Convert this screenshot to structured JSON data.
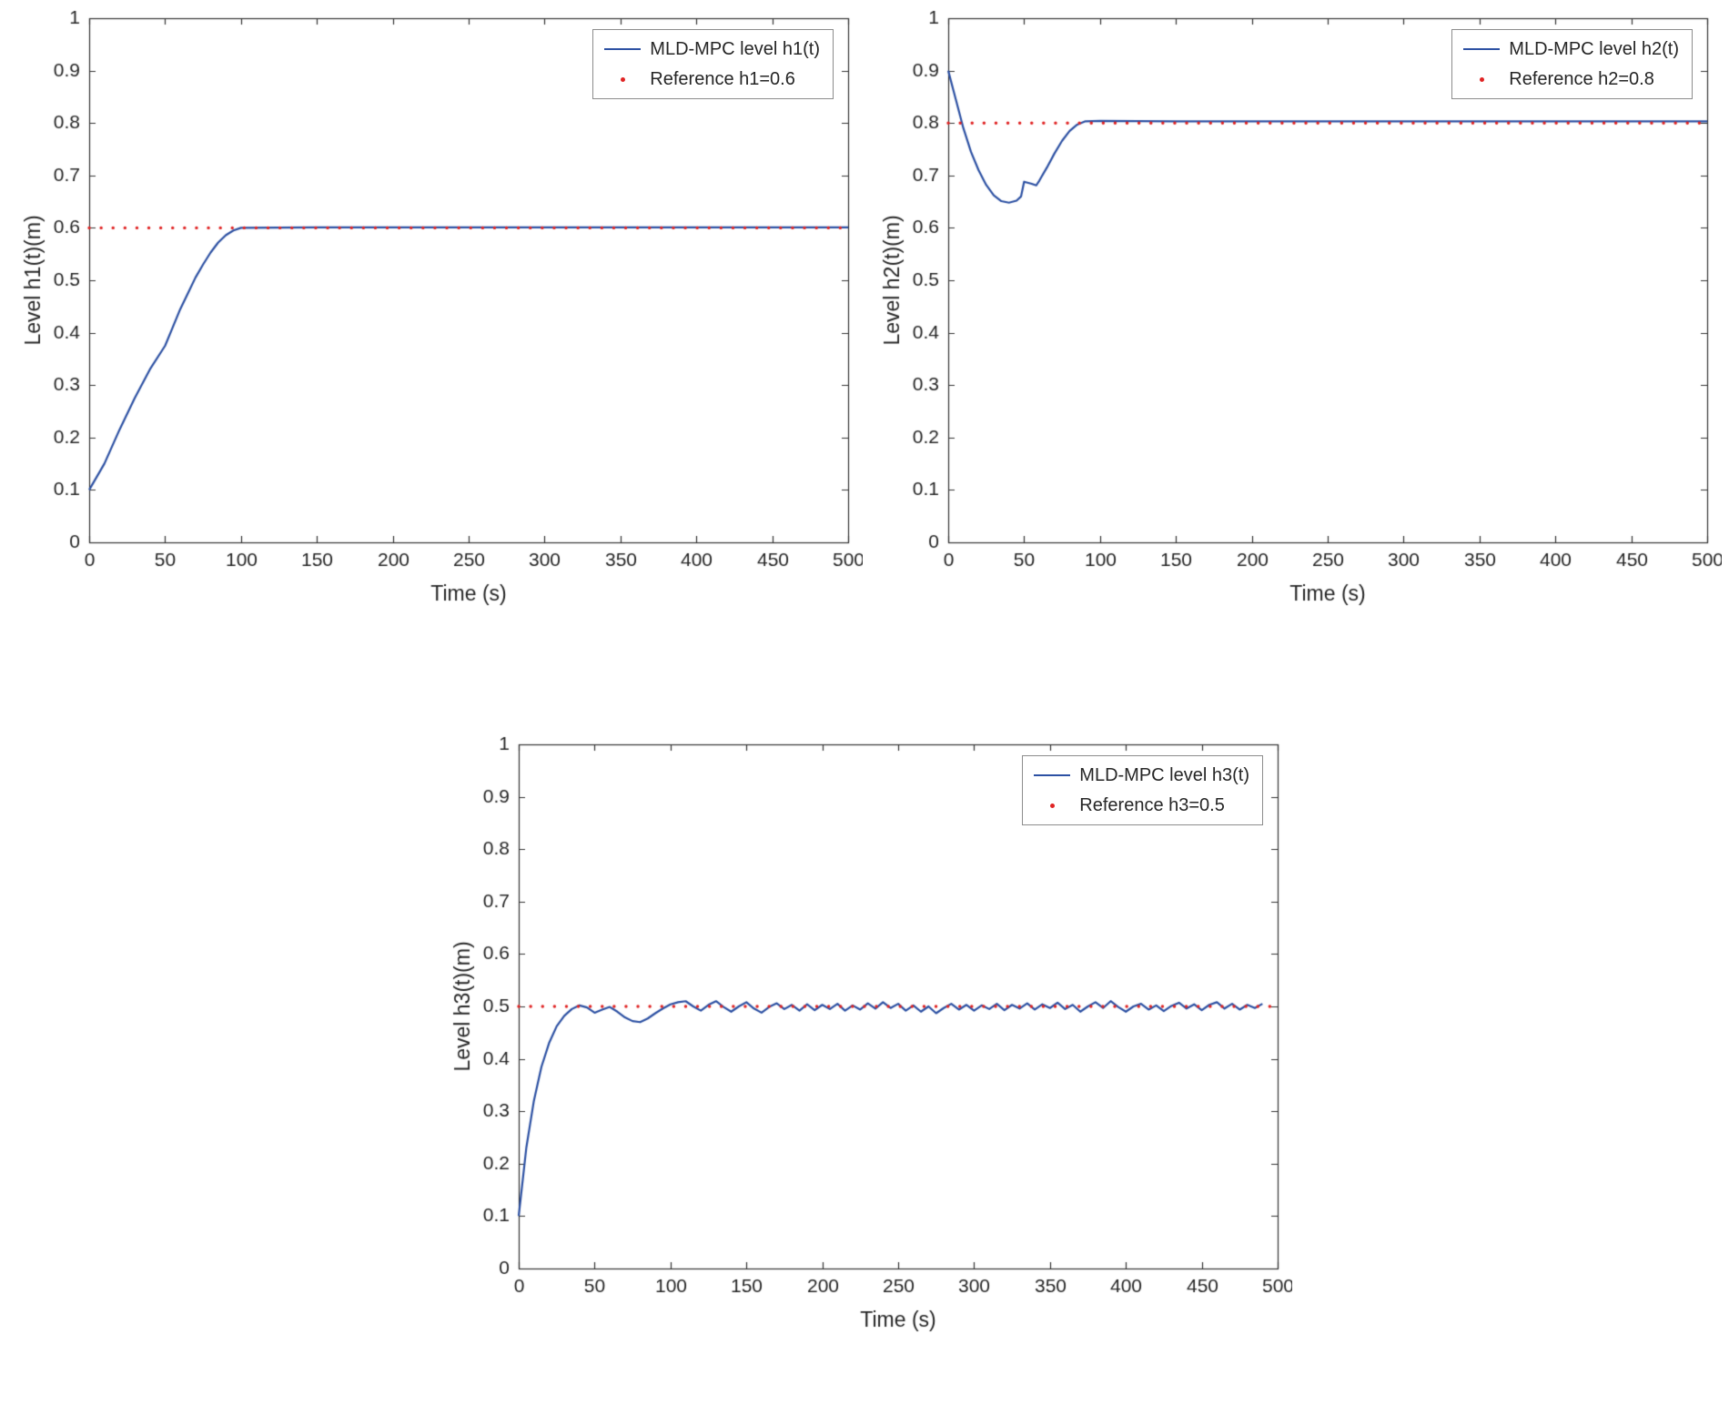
{
  "figure": {
    "background": "#ffffff",
    "axis_color": "#262626",
    "box_color": "#333333"
  },
  "chart_data": [
    {
      "type": "line",
      "title": "",
      "xlabel": "Time (s)",
      "ylabel": "Level h1(t)(m)",
      "xlim": [
        0,
        500
      ],
      "ylim": [
        0,
        1
      ],
      "xticks": [
        0,
        50,
        100,
        150,
        200,
        250,
        300,
        350,
        400,
        450,
        500
      ],
      "xtick_labels": [
        "0",
        "50",
        "100",
        "150",
        "200",
        "250",
        "300",
        "350",
        "400",
        "450",
        "500"
      ],
      "yticks": [
        0,
        0.1,
        0.2,
        0.3,
        0.4,
        0.5,
        0.6,
        0.7,
        0.8,
        0.9,
        1
      ],
      "ytick_labels": [
        "0",
        "0.1",
        "0.2",
        "0.3",
        "0.4",
        "0.5",
        "0.6",
        "0.7",
        "0.8",
        "0.9",
        "1"
      ],
      "grid": false,
      "legend_position": "top-right",
      "series": [
        {
          "name": "MLD-MPC level h1(t)",
          "color": "#2d51a3",
          "style": "solid",
          "points": [
            [
              0,
              0.1
            ],
            [
              10,
              0.15
            ],
            [
              20,
              0.215
            ],
            [
              30,
              0.275
            ],
            [
              40,
              0.33
            ],
            [
              50,
              0.375
            ],
            [
              55,
              0.41
            ],
            [
              60,
              0.445
            ],
            [
              65,
              0.475
            ],
            [
              70,
              0.505
            ],
            [
              75,
              0.53
            ],
            [
              80,
              0.553
            ],
            [
              85,
              0.572
            ],
            [
              90,
              0.586
            ],
            [
              95,
              0.595
            ],
            [
              100,
              0.6
            ],
            [
              150,
              0.601
            ],
            [
              200,
              0.601
            ],
            [
              250,
              0.601
            ],
            [
              300,
              0.601
            ],
            [
              350,
              0.601
            ],
            [
              400,
              0.601
            ],
            [
              450,
              0.601
            ],
            [
              500,
              0.601
            ]
          ]
        },
        {
          "name": "Reference h1=0.6",
          "color": "#e02424",
          "style": "dotted",
          "ref_value": 0.6,
          "x_start": 0,
          "x_end": 500
        }
      ]
    },
    {
      "type": "line",
      "title": "",
      "xlabel": "Time (s)",
      "ylabel": "Level h2(t)(m)",
      "xlim": [
        0,
        500
      ],
      "ylim": [
        0,
        1
      ],
      "xticks": [
        0,
        50,
        100,
        150,
        200,
        250,
        300,
        350,
        400,
        450,
        500
      ],
      "xtick_labels": [
        "0",
        "50",
        "100",
        "150",
        "200",
        "250",
        "300",
        "350",
        "400",
        "450",
        "500"
      ],
      "yticks": [
        0,
        0.1,
        0.2,
        0.3,
        0.4,
        0.5,
        0.6,
        0.7,
        0.8,
        0.9,
        1
      ],
      "ytick_labels": [
        "0",
        "0.1",
        "0.2",
        "0.3",
        "0.4",
        "0.5",
        "0.6",
        "0.7",
        "0.8",
        "0.9",
        "1"
      ],
      "grid": false,
      "legend_position": "top-right",
      "series": [
        {
          "name": "MLD-MPC level h2(t)",
          "color": "#2d51a3",
          "style": "solid",
          "points": [
            [
              0,
              0.9
            ],
            [
              5,
              0.845
            ],
            [
              10,
              0.79
            ],
            [
              15,
              0.745
            ],
            [
              20,
              0.71
            ],
            [
              25,
              0.682
            ],
            [
              30,
              0.662
            ],
            [
              35,
              0.651
            ],
            [
              40,
              0.648
            ],
            [
              45,
              0.652
            ],
            [
              48,
              0.66
            ],
            [
              50,
              0.688
            ],
            [
              55,
              0.684
            ],
            [
              58,
              0.681
            ],
            [
              60,
              0.69
            ],
            [
              65,
              0.715
            ],
            [
              70,
              0.742
            ],
            [
              75,
              0.766
            ],
            [
              80,
              0.785
            ],
            [
              85,
              0.797
            ],
            [
              90,
              0.803
            ],
            [
              100,
              0.804
            ],
            [
              150,
              0.803
            ],
            [
              200,
              0.803
            ],
            [
              250,
              0.803
            ],
            [
              300,
              0.803
            ],
            [
              350,
              0.803
            ],
            [
              400,
              0.803
            ],
            [
              450,
              0.803
            ],
            [
              500,
              0.803
            ]
          ]
        },
        {
          "name": "Reference h2=0.8",
          "color": "#e02424",
          "style": "dotted",
          "ref_value": 0.8,
          "x_start": 0,
          "x_end": 500
        }
      ]
    },
    {
      "type": "line",
      "title": "",
      "xlabel": "Time (s)",
      "ylabel": "Level h3(t)(m)",
      "xlim": [
        0,
        500
      ],
      "ylim": [
        0,
        1
      ],
      "xticks": [
        0,
        50,
        100,
        150,
        200,
        250,
        300,
        350,
        400,
        450,
        500
      ],
      "xtick_labels": [
        "0",
        "50",
        "100",
        "150",
        "200",
        "250",
        "300",
        "350",
        "400",
        "450",
        "500"
      ],
      "yticks": [
        0,
        0.1,
        0.2,
        0.3,
        0.4,
        0.5,
        0.6,
        0.7,
        0.8,
        0.9,
        1
      ],
      "ytick_labels": [
        "0",
        "0.1",
        "0.2",
        "0.3",
        "0.4",
        "0.5",
        "0.6",
        "0.7",
        "0.8",
        "0.9",
        "1"
      ],
      "grid": false,
      "legend_position": "top-right",
      "series": [
        {
          "name": "MLD-MPC level h3(t)",
          "color": "#2d51a3",
          "style": "solid",
          "points": [
            [
              0,
              0.1
            ],
            [
              5,
              0.23
            ],
            [
              10,
              0.32
            ],
            [
              15,
              0.385
            ],
            [
              20,
              0.43
            ],
            [
              25,
              0.462
            ],
            [
              30,
              0.482
            ],
            [
              35,
              0.495
            ],
            [
              40,
              0.502
            ],
            [
              45,
              0.498
            ],
            [
              50,
              0.488
            ],
            [
              55,
              0.494
            ],
            [
              60,
              0.499
            ],
            [
              65,
              0.49
            ],
            [
              70,
              0.479
            ],
            [
              75,
              0.472
            ],
            [
              80,
              0.47
            ],
            [
              85,
              0.477
            ],
            [
              90,
              0.487
            ],
            [
              95,
              0.496
            ],
            [
              100,
              0.504
            ],
            [
              105,
              0.508
            ],
            [
              110,
              0.51
            ],
            [
              115,
              0.5
            ],
            [
              120,
              0.492
            ],
            [
              125,
              0.503
            ],
            [
              130,
              0.51
            ],
            [
              135,
              0.499
            ],
            [
              140,
              0.49
            ],
            [
              145,
              0.5
            ],
            [
              150,
              0.508
            ],
            [
              155,
              0.496
            ],
            [
              160,
              0.488
            ],
            [
              165,
              0.499
            ],
            [
              170,
              0.506
            ],
            [
              175,
              0.495
            ],
            [
              180,
              0.503
            ],
            [
              185,
              0.492
            ],
            [
              190,
              0.504
            ],
            [
              195,
              0.493
            ],
            [
              200,
              0.503
            ],
            [
              205,
              0.495
            ],
            [
              210,
              0.505
            ],
            [
              215,
              0.492
            ],
            [
              220,
              0.502
            ],
            [
              225,
              0.494
            ],
            [
              230,
              0.506
            ],
            [
              235,
              0.496
            ],
            [
              240,
              0.508
            ],
            [
              245,
              0.497
            ],
            [
              250,
              0.505
            ],
            [
              255,
              0.492
            ],
            [
              260,
              0.502
            ],
            [
              265,
              0.49
            ],
            [
              270,
              0.5
            ],
            [
              275,
              0.487
            ],
            [
              280,
              0.497
            ],
            [
              285,
              0.505
            ],
            [
              290,
              0.494
            ],
            [
              295,
              0.503
            ],
            [
              300,
              0.492
            ],
            [
              305,
              0.502
            ],
            [
              310,
              0.495
            ],
            [
              315,
              0.505
            ],
            [
              320,
              0.493
            ],
            [
              325,
              0.503
            ],
            [
              330,
              0.496
            ],
            [
              335,
              0.506
            ],
            [
              340,
              0.494
            ],
            [
              345,
              0.504
            ],
            [
              350,
              0.497
            ],
            [
              355,
              0.507
            ],
            [
              360,
              0.495
            ],
            [
              365,
              0.503
            ],
            [
              370,
              0.49
            ],
            [
              375,
              0.5
            ],
            [
              380,
              0.508
            ],
            [
              385,
              0.497
            ],
            [
              390,
              0.51
            ],
            [
              395,
              0.499
            ],
            [
              400,
              0.49
            ],
            [
              405,
              0.5
            ],
            [
              410,
              0.505
            ],
            [
              415,
              0.494
            ],
            [
              420,
              0.502
            ],
            [
              425,
              0.491
            ],
            [
              430,
              0.501
            ],
            [
              435,
              0.507
            ],
            [
              440,
              0.496
            ],
            [
              445,
              0.504
            ],
            [
              450,
              0.493
            ],
            [
              455,
              0.503
            ],
            [
              460,
              0.508
            ],
            [
              465,
              0.496
            ],
            [
              470,
              0.505
            ],
            [
              475,
              0.494
            ],
            [
              480,
              0.503
            ],
            [
              485,
              0.497
            ],
            [
              490,
              0.505
            ]
          ]
        },
        {
          "name": "Reference h3=0.5",
          "color": "#e02424",
          "style": "dotted",
          "ref_value": 0.5,
          "x_start": 0,
          "x_end": 500
        }
      ]
    }
  ]
}
